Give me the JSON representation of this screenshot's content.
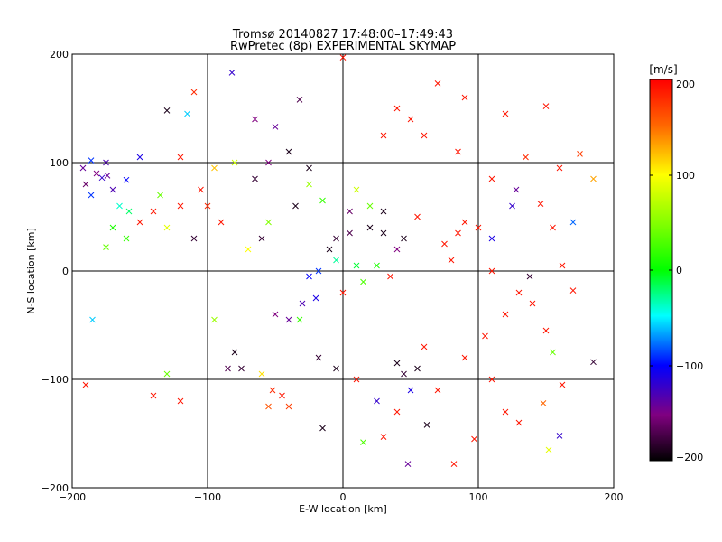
{
  "chart_data": {
    "type": "scatter",
    "title": "Tromsø 20140827 17:48:00–17:49:43",
    "subtitle": "RwPretec (8p) EXPERIMENTAL SKYMAP",
    "xlabel": "E-W location [km]",
    "ylabel": "N-S location [km]",
    "xlim": [
      -200,
      200
    ],
    "ylim": [
      -200,
      200
    ],
    "x_ticks": [
      "−200",
      "−100",
      "0",
      "100",
      "200"
    ],
    "y_ticks": [
      "−200",
      "−100",
      "0",
      "100",
      "200"
    ],
    "grid": true,
    "grid_lines": [
      -100,
      0,
      100
    ],
    "colorbar": {
      "unit": "[m/s]",
      "range": [
        -200,
        200
      ],
      "ticks": [
        "200",
        "100",
        "0",
        "−100",
        "−200"
      ]
    },
    "markers": {
      "small": "dot",
      "large": "cross"
    },
    "points": [
      {
        "x": -182,
        "y": 90,
        "v": -150,
        "m": "x"
      },
      {
        "x": -178,
        "y": 86,
        "v": -120,
        "m": "x"
      },
      {
        "x": -174,
        "y": 88,
        "v": -140,
        "m": "x"
      },
      {
        "x": -190,
        "y": 80,
        "v": -160,
        "m": "x"
      },
      {
        "x": -186,
        "y": 70,
        "v": -90,
        "m": "x"
      },
      {
        "x": -170,
        "y": 75,
        "v": -130,
        "m": "x"
      },
      {
        "x": -160,
        "y": 84,
        "v": -100,
        "m": "x"
      },
      {
        "x": -150,
        "y": 105,
        "v": -110,
        "m": "x"
      },
      {
        "x": -165,
        "y": 60,
        "v": -40,
        "m": "x"
      },
      {
        "x": -158,
        "y": 55,
        "v": -20,
        "m": "x"
      },
      {
        "x": -170,
        "y": 40,
        "v": 10,
        "m": "x"
      },
      {
        "x": -160,
        "y": 30,
        "v": 20,
        "m": "x"
      },
      {
        "x": -175,
        "y": 22,
        "v": 40,
        "m": "x"
      },
      {
        "x": -185,
        "y": -45,
        "v": -60,
        "m": "x"
      },
      {
        "x": -190,
        "y": -105,
        "v": 190,
        "m": "x"
      },
      {
        "x": -130,
        "y": 148,
        "v": -190,
        "m": "x"
      },
      {
        "x": -115,
        "y": 145,
        "v": -60,
        "m": "x"
      },
      {
        "x": -82,
        "y": 183,
        "v": -120,
        "m": "x"
      },
      {
        "x": -110,
        "y": 165,
        "v": 180,
        "m": "x"
      },
      {
        "x": -65,
        "y": 140,
        "v": -150,
        "m": "x"
      },
      {
        "x": -50,
        "y": 133,
        "v": -140,
        "m": "x"
      },
      {
        "x": -32,
        "y": 158,
        "v": -170,
        "m": "x"
      },
      {
        "x": 0,
        "y": 197,
        "v": 190,
        "m": "x"
      },
      {
        "x": 70,
        "y": 173,
        "v": 190,
        "m": "x"
      },
      {
        "x": 150,
        "y": 152,
        "v": 190,
        "m": "x"
      },
      {
        "x": 120,
        "y": 145,
        "v": 190,
        "m": "x"
      },
      {
        "x": 135,
        "y": 105,
        "v": 180,
        "m": "x"
      },
      {
        "x": 160,
        "y": 95,
        "v": 190,
        "m": "x"
      },
      {
        "x": 175,
        "y": 108,
        "v": 170,
        "m": "x"
      },
      {
        "x": 128,
        "y": 75,
        "v": -140,
        "m": "x"
      },
      {
        "x": 146,
        "y": 62,
        "v": 190,
        "m": "x"
      },
      {
        "x": 155,
        "y": 40,
        "v": 190,
        "m": "x"
      },
      {
        "x": 162,
        "y": 5,
        "v": 190,
        "m": "x"
      },
      {
        "x": 170,
        "y": -18,
        "v": 190,
        "m": "x"
      },
      {
        "x": 150,
        "y": -55,
        "v": 190,
        "m": "x"
      },
      {
        "x": 155,
        "y": -75,
        "v": 40,
        "m": "x"
      },
      {
        "x": 185,
        "y": -84,
        "v": -180,
        "m": "x"
      },
      {
        "x": 162,
        "y": -105,
        "v": 190,
        "m": "x"
      },
      {
        "x": 148,
        "y": -122,
        "v": 150,
        "m": "x"
      },
      {
        "x": 160,
        "y": -152,
        "v": -120,
        "m": "x"
      },
      {
        "x": 152,
        "y": -165,
        "v": 90,
        "m": "x"
      },
      {
        "x": 97,
        "y": -155,
        "v": 190,
        "m": "x"
      },
      {
        "x": 82,
        "y": -178,
        "v": 190,
        "m": "x"
      },
      {
        "x": 48,
        "y": -178,
        "v": -140,
        "m": "x"
      },
      {
        "x": 30,
        "y": -153,
        "v": 190,
        "m": "x"
      },
      {
        "x": 15,
        "y": -158,
        "v": 30,
        "m": "x"
      },
      {
        "x": -15,
        "y": -145,
        "v": -190,
        "m": "x"
      },
      {
        "x": 62,
        "y": -142,
        "v": -190,
        "m": "x"
      },
      {
        "x": 70,
        "y": -110,
        "v": 190,
        "m": "x"
      },
      {
        "x": 50,
        "y": -110,
        "v": -110,
        "m": "x"
      },
      {
        "x": -5,
        "y": -90,
        "v": -190,
        "m": "x"
      },
      {
        "x": -18,
        "y": -80,
        "v": -180,
        "m": "x"
      },
      {
        "x": 10,
        "y": -100,
        "v": 190,
        "m": "x"
      },
      {
        "x": -80,
        "y": -75,
        "v": -190,
        "m": "x"
      },
      {
        "x": -75,
        "y": -90,
        "v": -180,
        "m": "x"
      },
      {
        "x": -85,
        "y": -90,
        "v": -170,
        "m": "x"
      },
      {
        "x": -60,
        "y": -95,
        "v": 110,
        "m": "x"
      },
      {
        "x": -130,
        "y": -95,
        "v": 40,
        "m": "x"
      },
      {
        "x": -95,
        "y": -45,
        "v": 60,
        "m": "x"
      },
      {
        "x": -50,
        "y": -40,
        "v": -150,
        "m": "x"
      },
      {
        "x": -40,
        "y": -45,
        "v": -140,
        "m": "x"
      },
      {
        "x": -32,
        "y": -45,
        "v": 20,
        "m": "x"
      },
      {
        "x": -30,
        "y": -30,
        "v": -130,
        "m": "x"
      },
      {
        "x": -20,
        "y": -25,
        "v": -110,
        "m": "x"
      },
      {
        "x": -25,
        "y": -5,
        "v": -100,
        "m": "x"
      },
      {
        "x": -18,
        "y": 0,
        "v": -90,
        "m": "x"
      },
      {
        "x": -10,
        "y": 20,
        "v": -190,
        "m": "x"
      },
      {
        "x": -5,
        "y": 30,
        "v": -180,
        "m": "x"
      },
      {
        "x": 5,
        "y": 35,
        "v": -170,
        "m": "x"
      },
      {
        "x": 20,
        "y": 40,
        "v": -190,
        "m": "x"
      },
      {
        "x": 30,
        "y": 35,
        "v": -190,
        "m": "x"
      },
      {
        "x": 45,
        "y": 30,
        "v": -190,
        "m": "x"
      },
      {
        "x": 40,
        "y": 20,
        "v": -150,
        "m": "x"
      },
      {
        "x": 75,
        "y": 25,
        "v": 190,
        "m": "x"
      },
      {
        "x": 85,
        "y": 35,
        "v": 190,
        "m": "x"
      },
      {
        "x": 90,
        "y": 45,
        "v": 190,
        "m": "x"
      },
      {
        "x": 100,
        "y": 40,
        "v": 190,
        "m": "x"
      },
      {
        "x": 80,
        "y": 10,
        "v": 190,
        "m": "x"
      },
      {
        "x": 110,
        "y": 30,
        "v": -110,
        "m": "x"
      },
      {
        "x": 20,
        "y": 60,
        "v": 40,
        "m": "x"
      },
      {
        "x": 10,
        "y": 75,
        "v": 80,
        "m": "x"
      },
      {
        "x": -15,
        "y": 65,
        "v": 20,
        "m": "x"
      },
      {
        "x": -25,
        "y": 80,
        "v": 60,
        "m": "x"
      },
      {
        "x": -35,
        "y": 60,
        "v": -190,
        "m": "x"
      },
      {
        "x": -55,
        "y": 45,
        "v": 50,
        "m": "x"
      },
      {
        "x": -60,
        "y": 30,
        "v": -180,
        "m": "x"
      },
      {
        "x": -70,
        "y": 20,
        "v": 100,
        "m": "x"
      },
      {
        "x": -90,
        "y": 45,
        "v": 190,
        "m": "x"
      },
      {
        "x": -100,
        "y": 60,
        "v": 180,
        "m": "x"
      },
      {
        "x": -105,
        "y": 75,
        "v": 190,
        "m": "x"
      },
      {
        "x": -120,
        "y": 60,
        "v": 190,
        "m": "x"
      },
      {
        "x": -140,
        "y": 55,
        "v": 190,
        "m": "x"
      },
      {
        "x": -150,
        "y": 45,
        "v": 190,
        "m": "x"
      },
      {
        "x": -130,
        "y": 40,
        "v": 90,
        "m": "x"
      },
      {
        "x": -110,
        "y": 30,
        "v": -180,
        "m": "x"
      },
      {
        "x": -65,
        "y": 85,
        "v": -180,
        "m": "x"
      },
      {
        "x": -55,
        "y": 100,
        "v": -150,
        "m": "x"
      },
      {
        "x": -80,
        "y": 100,
        "v": 80,
        "m": "x"
      },
      {
        "x": -95,
        "y": 95,
        "v": 120,
        "m": "x"
      },
      {
        "x": -40,
        "y": 110,
        "v": -190,
        "m": "x"
      },
      {
        "x": -25,
        "y": 95,
        "v": -190,
        "m": "x"
      },
      {
        "x": 40,
        "y": 150,
        "v": 190,
        "m": "x"
      },
      {
        "x": 30,
        "y": 125,
        "v": 190,
        "m": "x"
      },
      {
        "x": 60,
        "y": 125,
        "v": 190,
        "m": "x"
      },
      {
        "x": 85,
        "y": 110,
        "v": 190,
        "m": "x"
      },
      {
        "x": 110,
        "y": 85,
        "v": 190,
        "m": "x"
      },
      {
        "x": 125,
        "y": 60,
        "v": -120,
        "m": "x"
      },
      {
        "x": 60,
        "y": -70,
        "v": 190,
        "m": "x"
      },
      {
        "x": 40,
        "y": -85,
        "v": -190,
        "m": "x"
      },
      {
        "x": 55,
        "y": -90,
        "v": -190,
        "m": "x"
      },
      {
        "x": 45,
        "y": -95,
        "v": -180,
        "m": "x"
      },
      {
        "x": 90,
        "y": -80,
        "v": 190,
        "m": "x"
      },
      {
        "x": 105,
        "y": -60,
        "v": 190,
        "m": "x"
      },
      {
        "x": 120,
        "y": -40,
        "v": 190,
        "m": "x"
      },
      {
        "x": 130,
        "y": -20,
        "v": 190,
        "m": "x"
      },
      {
        "x": 140,
        "y": -30,
        "v": 190,
        "m": "x"
      },
      {
        "x": 138,
        "y": -5,
        "v": -180,
        "m": "x"
      },
      {
        "x": 110,
        "y": 0,
        "v": 190,
        "m": "x"
      },
      {
        "x": -45,
        "y": -115,
        "v": 190,
        "m": "x"
      },
      {
        "x": -52,
        "y": -110,
        "v": 180,
        "m": "x"
      },
      {
        "x": -40,
        "y": -125,
        "v": 170,
        "m": "x"
      },
      {
        "x": -55,
        "y": -125,
        "v": 160,
        "m": "x"
      },
      {
        "x": -140,
        "y": -115,
        "v": 190,
        "m": "x"
      },
      {
        "x": -120,
        "y": -120,
        "v": 190,
        "m": "x"
      },
      {
        "x": 110,
        "y": -100,
        "v": 190,
        "m": "x"
      },
      {
        "x": 120,
        "y": -130,
        "v": 190,
        "m": "x"
      },
      {
        "x": 130,
        "y": -140,
        "v": 190,
        "m": "x"
      },
      {
        "x": 25,
        "y": -120,
        "v": -120,
        "m": "x"
      },
      {
        "x": 40,
        "y": -130,
        "v": 190,
        "m": "x"
      },
      {
        "x": -135,
        "y": 70,
        "v": 40,
        "m": "x"
      },
      {
        "x": -120,
        "y": 105,
        "v": 190,
        "m": "x"
      },
      {
        "x": -175,
        "y": 100,
        "v": -130,
        "m": "x"
      },
      {
        "x": -192,
        "y": 95,
        "v": -140,
        "m": "x"
      },
      {
        "x": -186,
        "y": 102,
        "v": -90,
        "m": "x"
      },
      {
        "x": 50,
        "y": 140,
        "v": 190,
        "m": "x"
      },
      {
        "x": 90,
        "y": 160,
        "v": 190,
        "m": "x"
      },
      {
        "x": 185,
        "y": 85,
        "v": 130,
        "m": "x"
      },
      {
        "x": 170,
        "y": 45,
        "v": -80,
        "m": "x"
      },
      {
        "x": -5,
        "y": 10,
        "v": -30,
        "m": "x"
      },
      {
        "x": 10,
        "y": 5,
        "v": -10,
        "m": "x"
      },
      {
        "x": 15,
        "y": -10,
        "v": 30,
        "m": "x"
      },
      {
        "x": 25,
        "y": 5,
        "v": 10,
        "m": "x"
      },
      {
        "x": 35,
        "y": -5,
        "v": 190,
        "m": "x"
      },
      {
        "x": 0,
        "y": -20,
        "v": 190,
        "m": "x"
      },
      {
        "x": 5,
        "y": 55,
        "v": -160,
        "m": "x"
      },
      {
        "x": 30,
        "y": 55,
        "v": -190,
        "m": "x"
      },
      {
        "x": 55,
        "y": 50,
        "v": 190,
        "m": "x"
      }
    ]
  }
}
